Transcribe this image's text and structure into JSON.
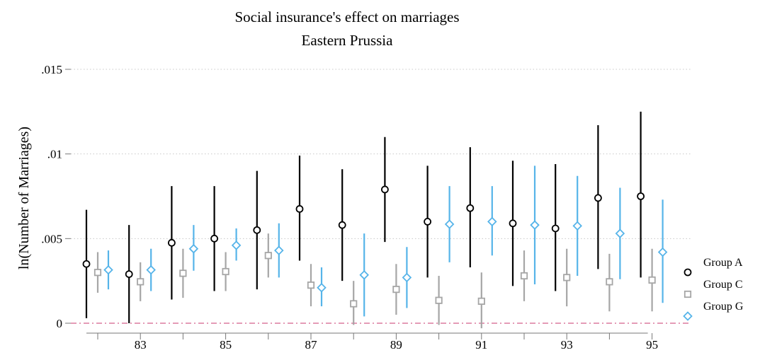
{
  "chart_data": {
    "type": "scatter",
    "title": "Social insurance's effect on marriages",
    "subtitle": "Eastern Prussia",
    "xlabel": "",
    "ylabel": "ln(Number of Marriages)",
    "ylim": [
      0,
      0.015
    ],
    "y_ticks": [
      {
        "value": 0,
        "label": "0"
      },
      {
        "value": 0.005,
        "label": ".005"
      },
      {
        "value": 0.01,
        "label": ".01"
      },
      {
        "value": 0.015,
        "label": ".015"
      }
    ],
    "x_tick_labels": [
      "83",
      "85",
      "87",
      "89",
      "91",
      "93",
      "95"
    ],
    "grid": true,
    "reference_line": {
      "value": 0
    },
    "legend_position": "right",
    "categories": [
      "82",
      "83",
      "84",
      "85",
      "86",
      "87",
      "88",
      "89",
      "90",
      "91",
      "92",
      "93",
      "94",
      "95"
    ],
    "series": [
      {
        "name": "Group A",
        "color": "#000000",
        "marker": "circle",
        "points": [
          {
            "x": "82",
            "y": 0.0035,
            "lo": 0.0003,
            "hi": 0.0067
          },
          {
            "x": "83",
            "y": 0.0029,
            "lo": 0.0,
            "hi": 0.0058
          },
          {
            "x": "84",
            "y": 0.00475,
            "lo": 0.0014,
            "hi": 0.0081
          },
          {
            "x": "85",
            "y": 0.005,
            "lo": 0.0019,
            "hi": 0.0081
          },
          {
            "x": "86",
            "y": 0.0055,
            "lo": 0.002,
            "hi": 0.009
          },
          {
            "x": "87",
            "y": 0.00675,
            "lo": 0.0037,
            "hi": 0.0099
          },
          {
            "x": "88",
            "y": 0.0058,
            "lo": 0.0025,
            "hi": 0.0091
          },
          {
            "x": "89",
            "y": 0.0079,
            "lo": 0.0048,
            "hi": 0.011
          },
          {
            "x": "90",
            "y": 0.006,
            "lo": 0.0027,
            "hi": 0.0093
          },
          {
            "x": "91",
            "y": 0.0068,
            "lo": 0.0033,
            "hi": 0.0104
          },
          {
            "x": "92",
            "y": 0.0059,
            "lo": 0.0022,
            "hi": 0.0096
          },
          {
            "x": "93",
            "y": 0.0056,
            "lo": 0.0019,
            "hi": 0.0094
          },
          {
            "x": "94",
            "y": 0.0074,
            "lo": 0.0032,
            "hi": 0.0117
          },
          {
            "x": "95",
            "y": 0.0075,
            "lo": 0.0027,
            "hi": 0.0125
          }
        ]
      },
      {
        "name": "Group C",
        "color": "#a6a6a6",
        "marker": "square",
        "points": [
          {
            "x": "82",
            "y": 0.003,
            "lo": 0.0018,
            "hi": 0.0042
          },
          {
            "x": "83",
            "y": 0.00245,
            "lo": 0.0013,
            "hi": 0.0036
          },
          {
            "x": "84",
            "y": 0.00295,
            "lo": 0.0015,
            "hi": 0.0044
          },
          {
            "x": "85",
            "y": 0.00305,
            "lo": 0.0019,
            "hi": 0.0042
          },
          {
            "x": "86",
            "y": 0.004,
            "lo": 0.0027,
            "hi": 0.0053
          },
          {
            "x": "87",
            "y": 0.00225,
            "lo": 0.001,
            "hi": 0.0035
          },
          {
            "x": "88",
            "y": 0.00115,
            "lo": -0.0001,
            "hi": 0.0025
          },
          {
            "x": "89",
            "y": 0.002,
            "lo": 0.0005,
            "hi": 0.0035
          },
          {
            "x": "90",
            "y": 0.00135,
            "lo": -0.0001,
            "hi": 0.0028
          },
          {
            "x": "91",
            "y": 0.0013,
            "lo": -0.0003,
            "hi": 0.003
          },
          {
            "x": "92",
            "y": 0.0028,
            "lo": 0.0013,
            "hi": 0.0043
          },
          {
            "x": "93",
            "y": 0.0027,
            "lo": 0.001,
            "hi": 0.0044
          },
          {
            "x": "94",
            "y": 0.00245,
            "lo": 0.0007,
            "hi": 0.0041
          },
          {
            "x": "95",
            "y": 0.00255,
            "lo": 0.0007,
            "hi": 0.0044
          }
        ]
      },
      {
        "name": "Group G",
        "color": "#56b4e9",
        "marker": "diamond",
        "points": [
          {
            "x": "82",
            "y": 0.00315,
            "lo": 0.002,
            "hi": 0.0043
          },
          {
            "x": "83",
            "y": 0.00315,
            "lo": 0.0019,
            "hi": 0.0044
          },
          {
            "x": "84",
            "y": 0.0044,
            "lo": 0.0031,
            "hi": 0.0058
          },
          {
            "x": "85",
            "y": 0.0046,
            "lo": 0.0037,
            "hi": 0.0056
          },
          {
            "x": "86",
            "y": 0.0043,
            "lo": 0.0027,
            "hi": 0.0059
          },
          {
            "x": "87",
            "y": 0.0021,
            "lo": 0.001,
            "hi": 0.0033
          },
          {
            "x": "88",
            "y": 0.00285,
            "lo": 0.0004,
            "hi": 0.0053
          },
          {
            "x": "89",
            "y": 0.0027,
            "lo": 0.0009,
            "hi": 0.0045
          },
          {
            "x": "90",
            "y": 0.00585,
            "lo": 0.0036,
            "hi": 0.0081
          },
          {
            "x": "91",
            "y": 0.006,
            "lo": 0.004,
            "hi": 0.0081
          },
          {
            "x": "92",
            "y": 0.0058,
            "lo": 0.0023,
            "hi": 0.0093
          },
          {
            "x": "93",
            "y": 0.00575,
            "lo": 0.0028,
            "hi": 0.0087
          },
          {
            "x": "94",
            "y": 0.0053,
            "lo": 0.0026,
            "hi": 0.008
          },
          {
            "x": "95",
            "y": 0.0042,
            "lo": 0.0012,
            "hi": 0.0073
          }
        ]
      }
    ],
    "colors": {
      "reference_line": "#d45f8a",
      "grid": "#c8c8c8",
      "axis": "#777777"
    }
  }
}
